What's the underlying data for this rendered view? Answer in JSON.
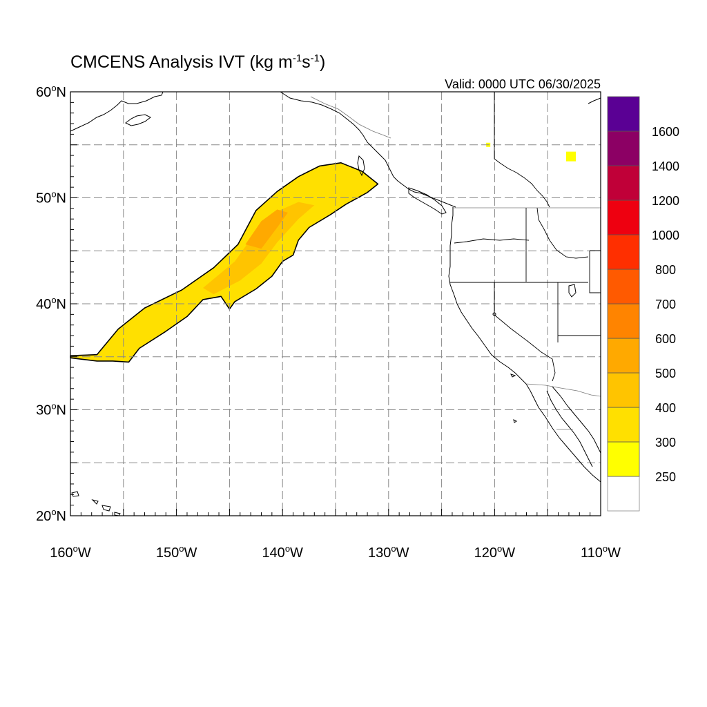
{
  "title": {
    "main": "CMCENS Analysis IVT (kg m",
    "sup1": "-1",
    "mid": "s",
    "sup2": "-1",
    "close": ")"
  },
  "valid_label": "Valid: 0000 UTC 06/30/2025",
  "map": {
    "lon_range": [
      -160,
      -110
    ],
    "lat_range": [
      20,
      60
    ],
    "gridlines": "dashed",
    "lon_ticks": [
      {
        "lon": -160,
        "label": "160°W"
      },
      {
        "lon": -150,
        "label": "150°W"
      },
      {
        "lon": -140,
        "label": "140°W"
      },
      {
        "lon": -130,
        "label": "130°W"
      },
      {
        "lon": -120,
        "label": "120°W"
      },
      {
        "lon": -110,
        "label": "110°W"
      }
    ],
    "lat_ticks": [
      {
        "lat": 60,
        "label": "60°N"
      },
      {
        "lat": 50,
        "label": "50°N"
      },
      {
        "lat": 40,
        "label": "40°N"
      },
      {
        "lat": 30,
        "label": "30°N"
      },
      {
        "lat": 20,
        "label": "20°N"
      }
    ]
  },
  "chart_data": {
    "type": "heatmap",
    "title": "CMCENS Analysis IVT (kg m-1s-1)",
    "subtitle": "Valid: 0000 UTC 06/30/2025",
    "xlim": [
      -160,
      -110
    ],
    "ylim": [
      20,
      60
    ],
    "colorbar": {
      "levels": [
        250,
        300,
        400,
        500,
        600,
        700,
        800,
        1000,
        1200,
        1400,
        1600
      ],
      "labels": [
        "250",
        "300",
        "400",
        "500",
        "600",
        "700",
        "800",
        "1000",
        "1200",
        "1400",
        "1600"
      ],
      "colors": [
        "#ffffff",
        "#ffff00",
        "#ffe000",
        "#ffc400",
        "#ffa900",
        "#ff8400",
        "#ff5a00",
        "#ff2f00",
        "#ee0010",
        "#c00038",
        "#8c0064",
        "#5a0094"
      ]
    },
    "atmospheric_river": {
      "outline_lonlat": [
        [
          -160.0,
          35.1
        ],
        [
          -157.5,
          35.2
        ],
        [
          -155.5,
          37.6
        ],
        [
          -153.0,
          39.6
        ],
        [
          -149.5,
          41.3
        ],
        [
          -146.5,
          43.4
        ],
        [
          -144.2,
          45.6
        ],
        [
          -142.5,
          48.8
        ],
        [
          -140.5,
          50.6
        ],
        [
          -138.5,
          52.0
        ],
        [
          -136.5,
          53.0
        ],
        [
          -134.5,
          53.3
        ],
        [
          -132.5,
          52.5
        ],
        [
          -131.0,
          51.3
        ],
        [
          -132.0,
          50.5
        ],
        [
          -134.0,
          49.4
        ],
        [
          -135.5,
          48.4
        ],
        [
          -137.5,
          47.2
        ],
        [
          -138.5,
          46.0
        ],
        [
          -139.0,
          44.6
        ],
        [
          -140.0,
          44.0
        ],
        [
          -141.0,
          42.6
        ],
        [
          -142.5,
          41.4
        ],
        [
          -144.5,
          40.2
        ],
        [
          -145.0,
          39.5
        ],
        [
          -145.8,
          40.7
        ],
        [
          -147.5,
          40.4
        ],
        [
          -149.0,
          38.8
        ],
        [
          -151.0,
          37.4
        ],
        [
          -153.5,
          35.8
        ],
        [
          -154.5,
          34.5
        ],
        [
          -156.0,
          34.6
        ],
        [
          -157.5,
          34.6
        ],
        [
          -160.0,
          34.9
        ]
      ],
      "core_lonlat": [
        [
          -147.5,
          41.5
        ],
        [
          -144.5,
          44.0
        ],
        [
          -142.5,
          46.8
        ],
        [
          -141.0,
          48.5
        ],
        [
          -138.5,
          49.6
        ],
        [
          -137.0,
          49.3
        ],
        [
          -138.5,
          48.0
        ],
        [
          -140.5,
          45.8
        ],
        [
          -142.0,
          43.8
        ],
        [
          -144.0,
          42.2
        ],
        [
          -146.5,
          40.9
        ]
      ],
      "peak_lonlat": [
        [
          -143.5,
          45.6
        ],
        [
          -142.0,
          47.8
        ],
        [
          -140.5,
          48.9
        ],
        [
          -139.5,
          48.6
        ],
        [
          -140.5,
          47.2
        ],
        [
          -142.0,
          45.2
        ]
      ],
      "min_level": 250,
      "max_level_approx": 500
    },
    "small_patches": [
      {
        "lon": -120.6,
        "lat": 55.0,
        "level": 250
      },
      {
        "lon": -112.8,
        "lat": 53.9,
        "level": 250
      }
    ]
  }
}
